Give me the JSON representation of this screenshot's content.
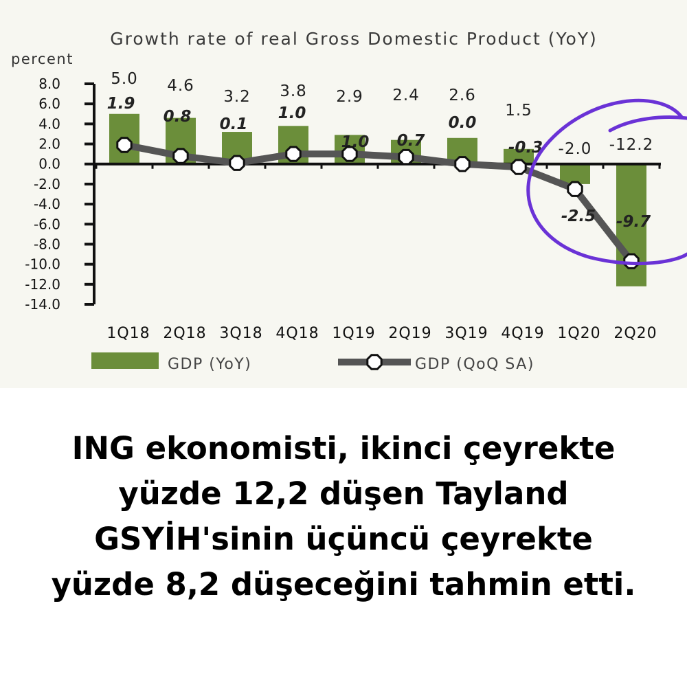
{
  "chart_data": {
    "type": "bar",
    "title": "Growth rate of real Gross Domestic Product (YoY)",
    "ylabel": "percent",
    "ylim": [
      -14,
      8
    ],
    "yticks": [
      "8.0",
      "6.0",
      "4.0",
      "2.0",
      "0.0",
      "-2.0",
      "-4.0",
      "-6.0",
      "-8.0",
      "-10.0",
      "-12.0",
      "-14.0"
    ],
    "categories": [
      "1Q18",
      "2Q18",
      "3Q18",
      "4Q18",
      "1Q19",
      "2Q19",
      "3Q19",
      "4Q19",
      "1Q20",
      "2Q20"
    ],
    "series": [
      {
        "name": "GDP (YoY)",
        "type": "bar",
        "values": [
          5.0,
          4.6,
          3.2,
          3.8,
          2.9,
          2.4,
          2.6,
          1.5,
          -2.0,
          -12.2
        ],
        "labels": [
          "5.0",
          "4.6",
          "3.2",
          "3.8",
          "2.9",
          "2.4",
          "2.6",
          "1.5",
          "-2.0",
          "-12.2"
        ],
        "color": "#6b8e3a"
      },
      {
        "name": "GDP (QoQ SA)",
        "type": "line",
        "values": [
          1.9,
          0.8,
          0.1,
          1.0,
          1.0,
          0.7,
          0.0,
          -0.3,
          -2.5,
          -9.7
        ],
        "labels": [
          "1.9",
          "0.8",
          "0.1",
          "1.0",
          "1.0",
          "0.7",
          "0.0",
          "-0.3",
          "-2.5",
          "-9.7"
        ],
        "color": "#555555"
      }
    ],
    "legend": "bottom",
    "annotation_color": "#6a32d6"
  },
  "caption": {
    "lines": [
      "ING ekonomisti, ikinci çeyrekte",
      "yüzde 12,2 düşen Tayland",
      "GSYİH'sinin üçüncü çeyrekte",
      "yüzde 8,2 düşeceğini tahmin etti."
    ]
  }
}
